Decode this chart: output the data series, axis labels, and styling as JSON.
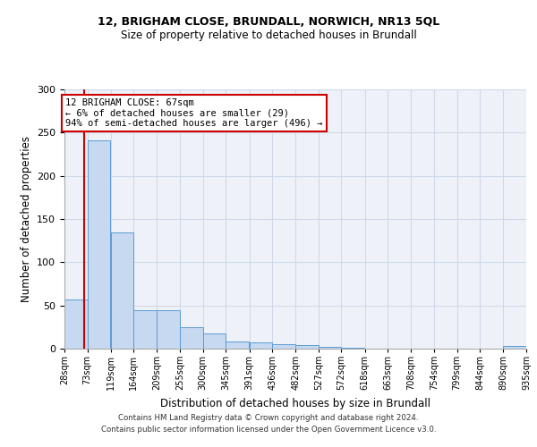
{
  "title1": "12, BRIGHAM CLOSE, BRUNDALL, NORWICH, NR13 5QL",
  "title2": "Size of property relative to detached houses in Brundall",
  "xlabel": "Distribution of detached houses by size in Brundall",
  "ylabel": "Number of detached properties",
  "annotation_title": "12 BRIGHAM CLOSE: 67sqm",
  "annotation_line1": "← 6% of detached houses are smaller (29)",
  "annotation_line2": "94% of semi-detached houses are larger (496) →",
  "property_size": 67,
  "bin_edges": [
    28,
    73,
    119,
    164,
    209,
    255,
    300,
    345,
    391,
    436,
    482,
    527,
    572,
    618,
    663,
    708,
    754,
    799,
    844,
    890,
    935
  ],
  "bin_counts": [
    57,
    241,
    134,
    45,
    44,
    25,
    18,
    8,
    7,
    5,
    4,
    2,
    1,
    0,
    0,
    0,
    0,
    0,
    0,
    3
  ],
  "bar_color": "#c6d9f0",
  "bar_edge_color": "#5b9bd5",
  "vline_color": "#cc0000",
  "vline_x": 67,
  "annotation_box_color": "#ffffff",
  "annotation_box_edge": "#cc0000",
  "grid_color": "#d0d8e8",
  "background_color": "#eef2f8",
  "ylim": [
    0,
    300
  ],
  "yticks": [
    0,
    50,
    100,
    150,
    200,
    250,
    300
  ],
  "footer1": "Contains HM Land Registry data © Crown copyright and database right 2024.",
  "footer2": "Contains public sector information licensed under the Open Government Licence v3.0."
}
